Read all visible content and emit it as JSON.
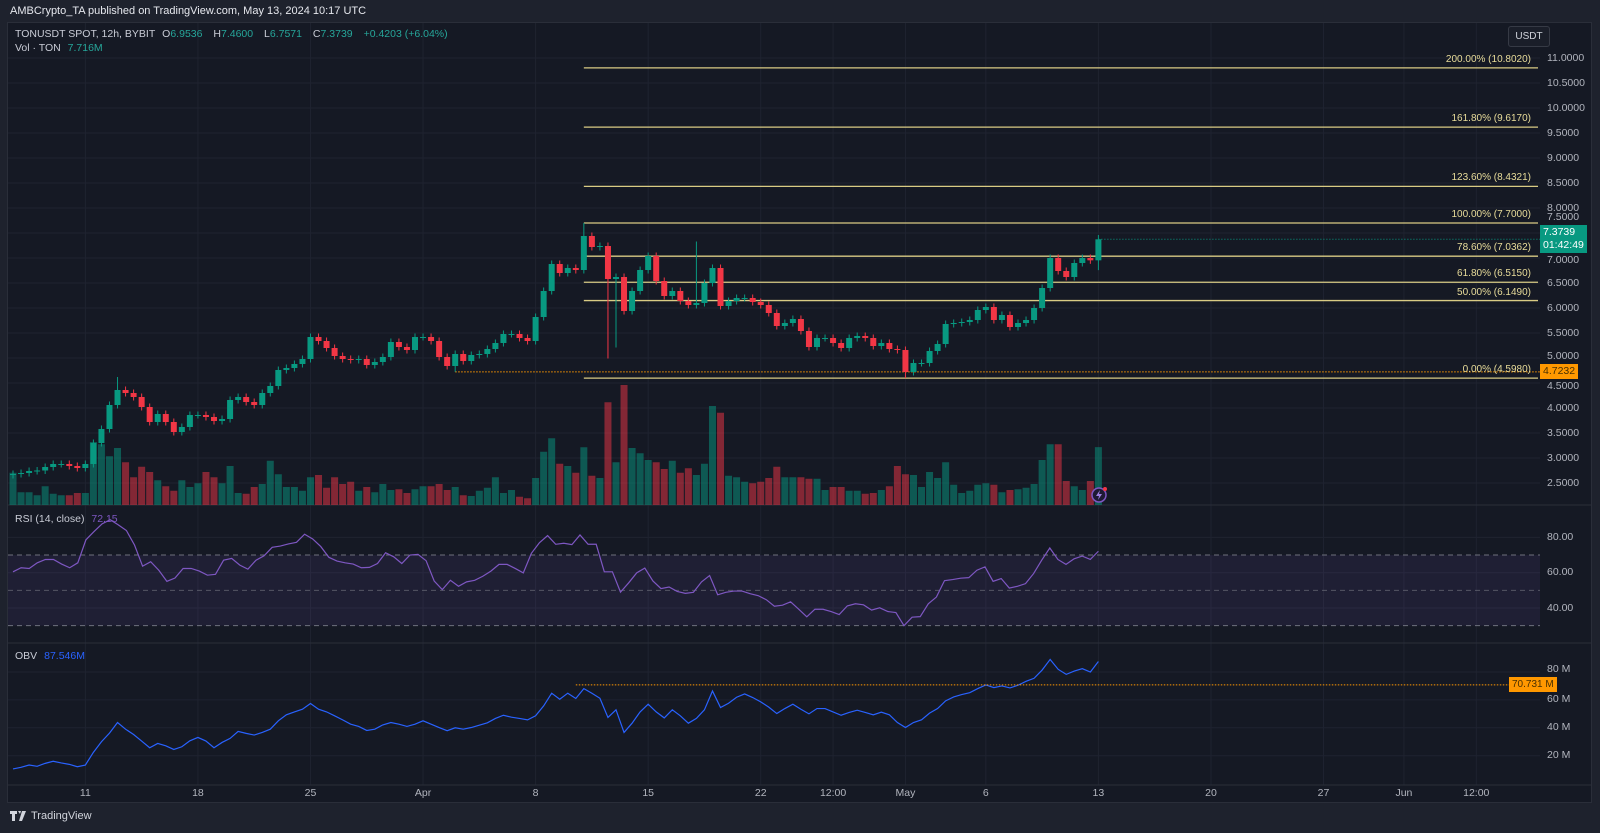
{
  "header": {
    "published": "AMBCrypto_TA published on TradingView.com, May 13, 2024 10:17 UTC"
  },
  "legend": {
    "symbol": "TONUSDT SPOT, 12h, BYBIT",
    "o_label": "O",
    "o": "6.9536",
    "h_label": "H",
    "h": "7.4600",
    "l_label": "L",
    "l": "6.7571",
    "c_label": "C",
    "c": "7.3739",
    "change": "+0.4203 (+6.04%)",
    "vol_label": "Vol · TON",
    "vol": "7.716M"
  },
  "rsi_legend": {
    "label": "RSI (14, close)",
    "value": "72.15"
  },
  "obv_legend": {
    "label": "OBV",
    "value": "87.546M"
  },
  "currency_button": "USDT",
  "footer": {
    "brand": "TradingView"
  },
  "colors": {
    "up": "#089981",
    "down": "#f23645",
    "fib": "#d9cb84",
    "rsi": "#7e57c2",
    "obv": "#2962ff",
    "marker": "#ff9800",
    "background": "#151924"
  },
  "chart_data": [
    {
      "type": "candlestick",
      "start": "2024-03-06T12:00:00Z",
      "interval": "12h",
      "ylim": [
        2.5,
        11.0
      ],
      "price_ticks": [
        "11.0000",
        "10.5000",
        "10.0000",
        "9.5000",
        "9.0000",
        "8.5000",
        "8.0000",
        "7.5000",
        "7.0000",
        "6.5000",
        "6.0000",
        "5.5000",
        "5.0000",
        "4.5000",
        "4.0000",
        "3.5000",
        "3.0000",
        "2.5000"
      ],
      "x_ticks": [
        {
          "label": "11",
          "date": "2024-03-11T00:00:00Z"
        },
        {
          "label": "18",
          "date": "2024-03-18T00:00:00Z"
        },
        {
          "label": "25",
          "date": "2024-03-25T00:00:00Z"
        },
        {
          "label": "Apr",
          "date": "2024-04-01T00:00:00Z"
        },
        {
          "label": "8",
          "date": "2024-04-08T00:00:00Z"
        },
        {
          "label": "15",
          "date": "2024-04-15T00:00:00Z"
        },
        {
          "label": "22",
          "date": "2024-04-22T00:00:00Z"
        },
        {
          "label": "12:00",
          "date": "2024-04-26T12:00:00Z"
        },
        {
          "label": "May",
          "date": "2024-05-01T00:00:00Z"
        },
        {
          "label": "6",
          "date": "2024-05-06T00:00:00Z"
        },
        {
          "label": "13",
          "date": "2024-05-13T00:00:00Z"
        },
        {
          "label": "20",
          "date": "2024-05-20T00:00:00Z"
        },
        {
          "label": "27",
          "date": "2024-05-27T00:00:00Z"
        },
        {
          "label": "Jun",
          "date": "2024-06-01T00:00:00Z"
        },
        {
          "label": "12:00",
          "date": "2024-06-05T12:00:00Z"
        }
      ],
      "close": [
        2.68,
        2.7,
        2.74,
        2.75,
        2.82,
        2.88,
        2.88,
        2.84,
        2.8,
        2.88,
        3.3,
        3.58,
        4.06,
        4.36,
        4.3,
        4.22,
        4.02,
        3.72,
        3.88,
        3.72,
        3.52,
        3.62,
        3.86,
        3.86,
        3.82,
        3.74,
        3.78,
        4.16,
        4.22,
        4.12,
        4.06,
        4.3,
        4.44,
        4.76,
        4.8,
        4.88,
        4.98,
        5.42,
        5.34,
        5.2,
        5.04,
        4.98,
        4.96,
        4.98,
        4.86,
        4.92,
        5.02,
        5.32,
        5.22,
        5.16,
        5.42,
        5.42,
        5.34,
        5.02,
        4.84,
        5.08,
        4.94,
        5.06,
        5.08,
        5.18,
        5.3,
        5.48,
        5.48,
        5.4,
        5.34,
        5.82,
        6.34,
        6.88,
        6.7,
        6.8,
        6.76,
        7.44,
        7.22,
        7.24,
        6.58,
        6.62,
        5.94,
        6.34,
        6.76,
        7.04,
        6.54,
        6.24,
        6.34,
        6.14,
        6.06,
        6.1,
        6.5,
        6.8,
        6.04,
        6.14,
        6.2,
        6.2,
        6.12,
        6.06,
        5.9,
        5.64,
        5.7,
        5.78,
        5.54,
        5.22,
        5.4,
        5.4,
        5.3,
        5.2,
        5.4,
        5.44,
        5.4,
        5.24,
        5.3,
        5.18,
        5.16,
        4.72,
        4.9,
        4.9,
        5.14,
        5.28,
        5.68,
        5.7,
        5.72,
        5.76,
        5.96,
        6.02,
        5.76,
        5.86,
        5.62,
        5.7,
        5.76,
        6.0,
        6.4,
        7.0,
        6.74,
        6.62,
        6.9,
        7.0,
        6.9536,
        7.3739
      ],
      "extremes": [
        {
          "date": "2024-03-13T00:00:00Z",
          "high": 4.62
        },
        {
          "date": "2024-04-03T00:00:00Z",
          "low": 4.7232
        },
        {
          "date": "2024-04-11T00:00:00Z",
          "high": 7.7
        },
        {
          "date": "2024-04-12T12:00:00Z",
          "low": 4.99
        },
        {
          "date": "2024-04-13T00:00:00Z",
          "low": 5.21
        },
        {
          "date": "2024-04-18T00:00:00Z",
          "high": 7.33
        },
        {
          "date": "2024-05-01T00:00:00Z",
          "low": 4.598
        },
        {
          "date": "2024-05-13T00:00:00Z",
          "high": 7.46,
          "low": 6.7571
        }
      ],
      "volume_unit": "M TON",
      "volume": [
        4.3,
        1.7,
        1.7,
        1.3,
        2.5,
        1.5,
        1.3,
        1.3,
        1.6,
        1.6,
        8.4,
        8.1,
        6.5,
        7.6,
        5.7,
        3.7,
        5.1,
        4.4,
        3.3,
        2.5,
        1.9,
        3.3,
        2.4,
        2.9,
        4.4,
        3.7,
        2.9,
        5.2,
        1.6,
        1.5,
        2.4,
        2.8,
        5.9,
        4.1,
        2.4,
        2.4,
        1.9,
        3.7,
        4.0,
        2.3,
        3.7,
        2.8,
        3.1,
        1.9,
        2.4,
        1.7,
        2.8,
        2.0,
        2.1,
        1.6,
        2.1,
        2.5,
        2.5,
        2.8,
        2.0,
        2.4,
        1.3,
        1.2,
        1.9,
        2.3,
        3.7,
        1.6,
        2.0,
        1.1,
        0.9,
        3.6,
        7.1,
        8.9,
        5.5,
        5.2,
        4.3,
        7.7,
        3.9,
        3.6,
        13.7,
        5.7,
        16.0,
        7.6,
        6.9,
        6.0,
        5.7,
        4.8,
        5.9,
        4.3,
        4.9,
        4.0,
        5.5,
        13.2,
        12.3,
        3.9,
        3.7,
        3.1,
        2.9,
        3.1,
        3.6,
        5.1,
        3.7,
        3.7,
        3.7,
        3.5,
        3.5,
        2.0,
        2.4,
        2.4,
        1.9,
        1.9,
        1.5,
        1.6,
        2.0,
        2.5,
        5.2,
        4.1,
        4.0,
        2.4,
        4.4,
        3.6,
        5.7,
        2.7,
        1.6,
        1.9,
        2.7,
        2.9,
        2.7,
        1.7,
        2.0,
        2.1,
        2.3,
        2.8,
        6.0,
        8.1,
        8.1,
        3.2,
        2.5,
        2.0,
        3.2,
        7.716
      ],
      "fib_start": "2024-04-11T00:00:00Z",
      "fib_levels": [
        {
          "label": "200.00% (10.8020)",
          "price": 10.802
        },
        {
          "label": "161.80% (9.6170)",
          "price": 9.617
        },
        {
          "label": "123.60% (8.4321)",
          "price": 8.4321
        },
        {
          "label": "100.00% (7.7000)",
          "price": 7.7
        },
        {
          "label": "78.60% (7.0362)",
          "price": 7.0362
        },
        {
          "label": "61.80% (6.5150)",
          "price": 6.515
        },
        {
          "label": "50.00% (6.1490)",
          "price": 6.149
        },
        {
          "label": "0.00% (4.5980)",
          "price": 4.598
        }
      ],
      "price_line": {
        "label": "4.7232",
        "price": 4.7232,
        "start": "2024-04-03T00:00:00Z"
      },
      "last_price": {
        "label": "7.3739",
        "countdown": "01:42:49",
        "price": 7.3739
      }
    },
    {
      "type": "line",
      "name": "RSI (14, close)",
      "ylim": [
        20,
        100
      ],
      "ticks": [
        "80.00",
        "60.00",
        "40.00"
      ],
      "bands": {
        "upper": 70,
        "middle": 50,
        "lower": 30
      },
      "values": [
        60.5,
        62.8,
        62.4,
        65.6,
        67.5,
        67.5,
        64.9,
        62.8,
        65.6,
        78.6,
        83.3,
        87.7,
        90.0,
        87.1,
        83.9,
        75.7,
        63.7,
        66.2,
        61.4,
        55.1,
        57.0,
        62.4,
        62.4,
        60.9,
        58.6,
        59.1,
        67.1,
        68.1,
        64.3,
        62.0,
        67.1,
        69.6,
        74.4,
        75.1,
        76.3,
        77.2,
        81.8,
        79.1,
        74.8,
        68.7,
        66.6,
        65.6,
        64.9,
        62.8,
        63.0,
        65.2,
        71.3,
        69.0,
        65.2,
        70.0,
        70.4,
        66.8,
        55.3,
        50.4,
        55.7,
        52.3,
        54.8,
        55.7,
        58.0,
        60.9,
        64.7,
        64.7,
        62.4,
        59.9,
        71.0,
        77.0,
        81.0,
        76.1,
        76.7,
        75.9,
        81.4,
        76.1,
        76.1,
        60.5,
        60.5,
        49.0,
        54.2,
        59.9,
        62.6,
        55.3,
        51.0,
        51.9,
        49.4,
        48.3,
        48.9,
        54.8,
        58.4,
        47.5,
        48.9,
        49.6,
        49.6,
        48.1,
        47.0,
        44.7,
        41.0,
        41.6,
        43.5,
        39.3,
        35.0,
        39.3,
        39.3,
        38.0,
        36.3,
        41.2,
        42.4,
        41.8,
        38.8,
        40.1,
        38.0,
        37.4,
        30.0,
        34.8,
        35.1,
        42.4,
        46.2,
        55.5,
        56.1,
        56.9,
        57.2,
        61.4,
        63.3,
        55.1,
        56.7,
        51.3,
        52.3,
        53.8,
        59.5,
        67.1,
        74.0,
        67.5,
        64.7,
        67.9,
        69.4,
        67.5,
        72.15
      ]
    },
    {
      "type": "line",
      "name": "OBV",
      "unit": "M",
      "ticks": [
        "80 M",
        "60 M",
        "40 M",
        "20 M"
      ],
      "values": [
        10.5,
        11.7,
        13.3,
        12.4,
        14.5,
        16.0,
        14.8,
        13.8,
        12.1,
        13.3,
        22.4,
        30.0,
        36.2,
        43.8,
        39.0,
        35.2,
        30.5,
        25.7,
        28.8,
        27.1,
        24.5,
        26.4,
        30.7,
        33.1,
        30.5,
        25.7,
        29.5,
        32.4,
        37.4,
        36.0,
        34.8,
        36.7,
        39.0,
        45.0,
        49.3,
        51.4,
        53.3,
        57.4,
        53.3,
        51.4,
        48.6,
        45.7,
        42.6,
        41.0,
        38.1,
        39.0,
        42.1,
        43.8,
        42.6,
        41.0,
        42.6,
        45.0,
        42.6,
        40.2,
        37.9,
        40.0,
        39.0,
        40.2,
        41.9,
        43.6,
        46.7,
        49.0,
        47.6,
        46.7,
        45.7,
        48.6,
        55.7,
        64.8,
        60.5,
        64.8,
        61.0,
        68.1,
        64.8,
        61.2,
        47.4,
        52.9,
        36.7,
        43.3,
        51.4,
        56.9,
        51.4,
        47.1,
        52.9,
        48.6,
        43.3,
        46.7,
        52.9,
        66.4,
        54.5,
        57.6,
        61.9,
        64.3,
        61.7,
        58.6,
        54.8,
        50.2,
        53.8,
        56.9,
        53.3,
        50.0,
        53.8,
        53.8,
        51.4,
        49.0,
        51.0,
        52.6,
        51.0,
        49.3,
        51.2,
        49.3,
        43.8,
        40.2,
        43.8,
        45.7,
        50.5,
        53.8,
        59.3,
        62.1,
        63.8,
        65.2,
        68.1,
        70.7,
        68.8,
        70.0,
        68.6,
        70.5,
        73.3,
        75.5,
        81.4,
        89.0,
        81.9,
        78.3,
        80.7,
        82.4,
        80.0,
        87.546
      ],
      "price_line": {
        "label": "70.731 M",
        "value": 70.731,
        "start": "2024-04-10T12:00:00Z"
      }
    }
  ]
}
